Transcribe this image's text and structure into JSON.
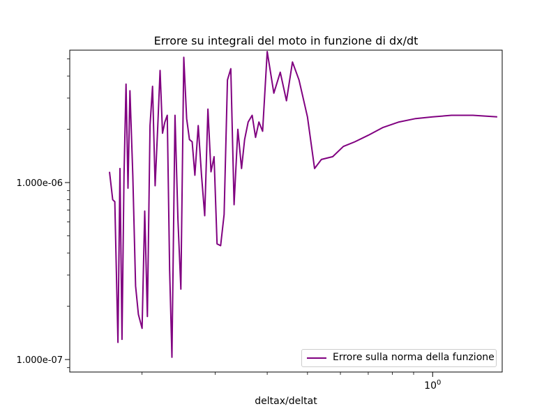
{
  "chart_data": {
    "type": "line",
    "title": "Errore su integrali del moto in funzione di dx/dt",
    "xlabel": "deltax/deltat",
    "ylabel": "",
    "xscale": "log",
    "yscale": "log",
    "xlim": [
      0.134,
      1.47
    ],
    "ylim": [
      8.5e-08,
      5.6e-06
    ],
    "x_tick_labels": [
      {
        "value": 1.0,
        "label": "10^0"
      }
    ],
    "y_tick_labels": [
      {
        "value": 1e-06,
        "label": "1.000e-06"
      },
      {
        "value": 1e-07,
        "label": "1.000e-07"
      }
    ],
    "legend_loc": "lower right",
    "color": "#800080",
    "series": [
      {
        "name": "Errore sulla norma della funzione",
        "x": [
          0.167,
          0.17,
          0.172,
          0.175,
          0.177,
          0.179,
          0.181,
          0.183,
          0.185,
          0.187,
          0.19,
          0.193,
          0.196,
          0.2,
          0.203,
          0.206,
          0.209,
          0.212,
          0.215,
          0.218,
          0.221,
          0.224,
          0.227,
          0.23,
          0.233,
          0.236,
          0.24,
          0.244,
          0.248,
          0.252,
          0.256,
          0.26,
          0.264,
          0.268,
          0.273,
          0.278,
          0.283,
          0.288,
          0.293,
          0.298,
          0.303,
          0.309,
          0.315,
          0.321,
          0.327,
          0.333,
          0.34,
          0.347,
          0.353,
          0.36,
          0.368,
          0.375,
          0.382,
          0.39,
          0.4,
          0.415,
          0.43,
          0.445,
          0.46,
          0.477,
          0.5,
          0.52,
          0.54,
          0.575,
          0.61,
          0.65,
          0.7,
          0.76,
          0.83,
          0.91,
          1.0,
          1.11,
          1.25,
          1.43
        ],
        "values": [
          1.15e-06,
          8e-07,
          7.8e-07,
          1.25e-07,
          1.2e-06,
          1.3e-07,
          1.1e-06,
          3.6e-06,
          9.3e-07,
          3.3e-06,
          1.1e-06,
          2.6e-07,
          1.8e-07,
          1.5e-07,
          6.9e-07,
          1.75e-07,
          2.1e-06,
          3.5e-06,
          9.6e-07,
          2e-06,
          4.3e-06,
          1.9e-06,
          2.2e-06,
          2.4e-06,
          3.2e-07,
          1.03e-07,
          2.4e-06,
          6.2e-07,
          2.5e-07,
          5.1e-06,
          2.3e-06,
          1.75e-06,
          1.7e-06,
          1.1e-06,
          2.1e-06,
          1.1e-06,
          6.5e-07,
          2.6e-06,
          1.15e-06,
          1.4e-06,
          4.5e-07,
          4.4e-07,
          6.6e-07,
          3.8e-06,
          4.4e-06,
          7.5e-07,
          2e-06,
          1.2e-06,
          1.75e-06,
          2.2e-06,
          2.4e-06,
          1.8e-06,
          2.2e-06,
          1.95e-06,
          5.5e-06,
          3.2e-06,
          4.2e-06,
          2.9e-06,
          4.8e-06,
          3.8e-06,
          2.35e-06,
          1.2e-06,
          1.35e-06,
          1.4e-06,
          1.6e-06,
          1.7e-06,
          1.85e-06,
          2.05e-06,
          2.2e-06,
          2.3e-06,
          2.35e-06,
          2.4e-06,
          2.4e-06,
          2.35e-06
        ]
      }
    ]
  }
}
